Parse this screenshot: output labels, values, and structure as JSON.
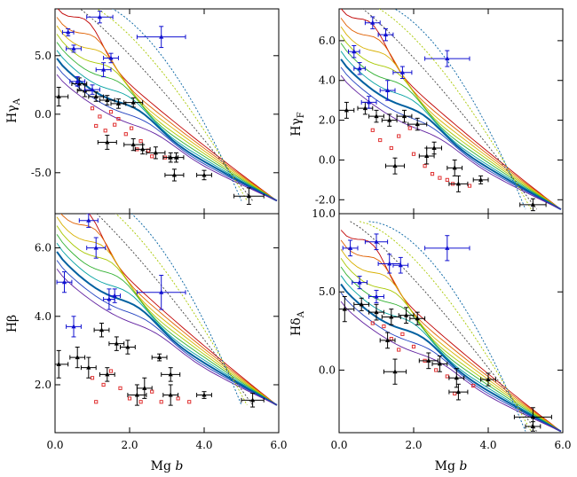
{
  "chart_data": [
    {
      "type": "scatter",
      "panel": "top-left",
      "ylabel_main": "Hγ",
      "ylabel_sub": "A",
      "xlim": [
        0.0,
        6.0
      ],
      "ylim": [
        -8.5,
        9.0
      ],
      "xticks": [
        0.0,
        2.0,
        4.0,
        6.0
      ],
      "yticks": [
        5.0,
        0.0,
        -5.0
      ],
      "ytick_labels": [
        "5.0",
        "0.0",
        "-5.0"
      ],
      "blue_points": [
        {
          "x": 0.35,
          "y": 7.0,
          "xe": 0.15,
          "ye": 0.3
        },
        {
          "x": 1.2,
          "y": 8.3,
          "xe": 0.35,
          "ye": 0.5
        },
        {
          "x": 0.5,
          "y": 5.6,
          "xe": 0.2,
          "ye": 0.3
        },
        {
          "x": 1.5,
          "y": 4.8,
          "xe": 0.2,
          "ye": 0.4
        },
        {
          "x": 1.3,
          "y": 3.8,
          "xe": 0.2,
          "ye": 0.6
        },
        {
          "x": 2.85,
          "y": 6.6,
          "xe": 0.65,
          "ye": 0.9
        },
        {
          "x": 0.6,
          "y": 2.8,
          "xe": 0.2,
          "ye": 0.4
        },
        {
          "x": 1.0,
          "y": 2.1,
          "xe": 0.2,
          "ye": 0.4
        }
      ],
      "black_points": [
        {
          "x": 0.1,
          "y": 1.5,
          "xe": 0.25,
          "ye": 0.8
        },
        {
          "x": 0.65,
          "y": 2.6,
          "xe": 0.2,
          "ye": 0.5
        },
        {
          "x": 0.8,
          "y": 2.0,
          "xe": 0.2,
          "ye": 0.5
        },
        {
          "x": 1.1,
          "y": 1.5,
          "xe": 0.2,
          "ye": 0.4
        },
        {
          "x": 1.4,
          "y": 1.2,
          "xe": 0.2,
          "ye": 0.4
        },
        {
          "x": 1.7,
          "y": 0.9,
          "xe": 0.2,
          "ye": 0.4
        },
        {
          "x": 2.1,
          "y": 1.0,
          "xe": 0.25,
          "ye": 0.4
        },
        {
          "x": 1.4,
          "y": -2.4,
          "xe": 0.25,
          "ye": 0.6
        },
        {
          "x": 2.1,
          "y": -2.6,
          "xe": 0.25,
          "ye": 0.5
        },
        {
          "x": 2.35,
          "y": -3.0,
          "xe": 0.2,
          "ye": 0.4
        },
        {
          "x": 2.7,
          "y": -3.3,
          "xe": 0.25,
          "ye": 0.5
        },
        {
          "x": 3.1,
          "y": -3.7,
          "xe": 0.2,
          "ye": 0.4
        },
        {
          "x": 3.25,
          "y": -3.7,
          "xe": 0.2,
          "ye": 0.4
        },
        {
          "x": 3.2,
          "y": -5.2,
          "xe": 0.25,
          "ye": 0.5
        },
        {
          "x": 4.0,
          "y": -5.2,
          "xe": 0.2,
          "ye": 0.4
        },
        {
          "x": 5.2,
          "y": -7.0,
          "xe": 0.4,
          "ye": 0.7
        }
      ],
      "red_points": [
        {
          "x": 1.0,
          "y": 0.5
        },
        {
          "x": 1.2,
          "y": -0.2
        },
        {
          "x": 1.5,
          "y": 0.2
        },
        {
          "x": 1.1,
          "y": -1.0
        },
        {
          "x": 1.7,
          "y": -0.4
        },
        {
          "x": 1.35,
          "y": -1.4
        },
        {
          "x": 1.9,
          "y": -1.7
        },
        {
          "x": 2.3,
          "y": -2.3
        },
        {
          "x": 2.5,
          "y": -3.1
        },
        {
          "x": 2.6,
          "y": -3.6
        },
        {
          "x": 2.95,
          "y": -3.7
        },
        {
          "x": 2.2,
          "y": -3.0
        },
        {
          "x": 1.6,
          "y": -0.9
        },
        {
          "x": 2.05,
          "y": -1.2
        }
      ]
    },
    {
      "type": "scatter",
      "panel": "top-right",
      "ylabel_main": "Hγ",
      "ylabel_sub": "F",
      "xlim": [
        0.0,
        6.0
      ],
      "ylim": [
        -2.7,
        7.6
      ],
      "xticks": [
        0.0,
        2.0,
        4.0,
        6.0
      ],
      "yticks": [
        6.0,
        4.0,
        2.0,
        0.0,
        -2.0
      ],
      "ytick_labels": [
        "6.0",
        "4.0",
        "2.0",
        "0.0",
        "-2.0"
      ],
      "blue_points": [
        {
          "x": 0.9,
          "y": 6.9,
          "xe": 0.2,
          "ye": 0.3
        },
        {
          "x": 1.25,
          "y": 6.3,
          "xe": 0.2,
          "ye": 0.3
        },
        {
          "x": 0.4,
          "y": 5.45,
          "xe": 0.15,
          "ye": 0.3
        },
        {
          "x": 0.55,
          "y": 4.6,
          "xe": 0.15,
          "ye": 0.3
        },
        {
          "x": 1.7,
          "y": 4.4,
          "xe": 0.25,
          "ye": 0.3
        },
        {
          "x": 1.3,
          "y": 3.5,
          "xe": 0.2,
          "ye": 0.5
        },
        {
          "x": 2.9,
          "y": 5.1,
          "xe": 0.6,
          "ye": 0.4
        },
        {
          "x": 0.8,
          "y": 2.9,
          "xe": 0.2,
          "ye": 0.3
        }
      ],
      "black_points": [
        {
          "x": 0.2,
          "y": 2.5,
          "xe": 0.2,
          "ye": 0.4
        },
        {
          "x": 0.7,
          "y": 2.6,
          "xe": 0.2,
          "ye": 0.3
        },
        {
          "x": 1.0,
          "y": 2.2,
          "xe": 0.2,
          "ye": 0.3
        },
        {
          "x": 1.35,
          "y": 2.0,
          "xe": 0.2,
          "ye": 0.3
        },
        {
          "x": 1.75,
          "y": 2.2,
          "xe": 0.2,
          "ye": 0.3
        },
        {
          "x": 2.1,
          "y": 1.8,
          "xe": 0.25,
          "ye": 0.3
        },
        {
          "x": 1.5,
          "y": -0.3,
          "xe": 0.25,
          "ye": 0.4
        },
        {
          "x": 2.35,
          "y": 0.2,
          "xe": 0.2,
          "ye": 0.4
        },
        {
          "x": 2.55,
          "y": 0.6,
          "xe": 0.2,
          "ye": 0.3
        },
        {
          "x": 3.1,
          "y": -0.4,
          "xe": 0.2,
          "ye": 0.4
        },
        {
          "x": 3.2,
          "y": -1.2,
          "xe": 0.25,
          "ye": 0.4
        },
        {
          "x": 3.8,
          "y": -1.0,
          "xe": 0.2,
          "ye": 0.2
        },
        {
          "x": 5.2,
          "y": -2.25,
          "xe": 0.35,
          "ye": 0.3
        }
      ],
      "red_points": [
        {
          "x": 0.9,
          "y": 1.5
        },
        {
          "x": 1.1,
          "y": 1.0
        },
        {
          "x": 1.4,
          "y": 0.6
        },
        {
          "x": 1.6,
          "y": 1.2
        },
        {
          "x": 2.0,
          "y": 0.3
        },
        {
          "x": 2.3,
          "y": -0.3
        },
        {
          "x": 2.5,
          "y": -0.7
        },
        {
          "x": 2.7,
          "y": -0.9
        },
        {
          "x": 2.9,
          "y": -1.0
        },
        {
          "x": 3.05,
          "y": -1.2
        },
        {
          "x": 3.5,
          "y": -1.3
        },
        {
          "x": 1.9,
          "y": 1.6
        }
      ]
    },
    {
      "type": "scatter",
      "panel": "bottom-left",
      "ylabel_main": "Hβ",
      "ylabel_sub": "",
      "xlim": [
        0.0,
        6.0
      ],
      "ylim": [
        0.6,
        7.0
      ],
      "xticks": [
        0.0,
        2.0,
        4.0,
        6.0
      ],
      "xtick_labels": [
        "0.0",
        "2.0",
        "4.0",
        "6.0"
      ],
      "yticks": [
        6.0,
        4.0,
        2.0
      ],
      "ytick_labels": [
        "6.0",
        "4.0",
        "2.0"
      ],
      "xlabel_main": "Mg",
      "xlabel_it": "b",
      "blue_points": [
        {
          "x": 0.9,
          "y": 6.8,
          "xe": 0.25,
          "ye": 0.2
        },
        {
          "x": 1.1,
          "y": 6.0,
          "xe": 0.25,
          "ye": 0.3
        },
        {
          "x": 0.25,
          "y": 5.0,
          "xe": 0.2,
          "ye": 0.3
        },
        {
          "x": 1.45,
          "y": 4.5,
          "xe": 0.15,
          "ye": 0.3
        },
        {
          "x": 1.6,
          "y": 4.6,
          "xe": 0.15,
          "ye": 0.2
        },
        {
          "x": 2.85,
          "y": 4.7,
          "xe": 0.65,
          "ye": 0.5
        },
        {
          "x": 0.5,
          "y": 3.7,
          "xe": 0.2,
          "ye": 0.3
        }
      ],
      "black_points": [
        {
          "x": 0.1,
          "y": 2.6,
          "xe": 0.25,
          "ye": 0.4
        },
        {
          "x": 0.6,
          "y": 2.8,
          "xe": 0.2,
          "ye": 0.3
        },
        {
          "x": 0.9,
          "y": 2.5,
          "xe": 0.2,
          "ye": 0.3
        },
        {
          "x": 1.25,
          "y": 3.6,
          "xe": 0.2,
          "ye": 0.2
        },
        {
          "x": 1.65,
          "y": 3.2,
          "xe": 0.2,
          "ye": 0.2
        },
        {
          "x": 1.95,
          "y": 3.1,
          "xe": 0.2,
          "ye": 0.2
        },
        {
          "x": 1.4,
          "y": 2.3,
          "xe": 0.2,
          "ye": 0.2
        },
        {
          "x": 2.2,
          "y": 1.7,
          "xe": 0.25,
          "ye": 0.3
        },
        {
          "x": 2.4,
          "y": 1.9,
          "xe": 0.2,
          "ye": 0.3
        },
        {
          "x": 2.8,
          "y": 2.8,
          "xe": 0.2,
          "ye": 0.1
        },
        {
          "x": 3.1,
          "y": 2.3,
          "xe": 0.25,
          "ye": 0.2
        },
        {
          "x": 3.1,
          "y": 1.7,
          "xe": 0.2,
          "ye": 0.3
        },
        {
          "x": 4.0,
          "y": 1.7,
          "xe": 0.2,
          "ye": 0.1
        },
        {
          "x": 5.3,
          "y": 1.55,
          "xe": 0.3,
          "ye": 0.2
        }
      ],
      "red_points": [
        {
          "x": 1.0,
          "y": 2.2
        },
        {
          "x": 1.3,
          "y": 2.0
        },
        {
          "x": 1.5,
          "y": 2.4
        },
        {
          "x": 1.75,
          "y": 1.9
        },
        {
          "x": 2.0,
          "y": 1.6
        },
        {
          "x": 2.3,
          "y": 1.5
        },
        {
          "x": 2.6,
          "y": 1.8
        },
        {
          "x": 2.85,
          "y": 1.5
        },
        {
          "x": 3.3,
          "y": 1.6
        },
        {
          "x": 1.1,
          "y": 1.5
        },
        {
          "x": 3.6,
          "y": 1.5
        }
      ]
    },
    {
      "type": "scatter",
      "panel": "bottom-right",
      "ylabel_main": "Hδ",
      "ylabel_sub": "A",
      "xlim": [
        0.0,
        6.0
      ],
      "ylim": [
        -4.0,
        10.0
      ],
      "xticks": [
        0.0,
        2.0,
        4.0,
        6.0
      ],
      "xtick_labels": [
        "0.0",
        "2.0",
        "4.0",
        "6.0"
      ],
      "yticks": [
        10.0,
        5.0,
        0.0
      ],
      "ytick_labels": [
        "10.0",
        "5.0",
        "0.0"
      ],
      "xlabel_main": "Mg",
      "xlabel_it": "b",
      "blue_points": [
        {
          "x": 0.3,
          "y": 7.8,
          "xe": 0.2,
          "ye": 0.5
        },
        {
          "x": 1.0,
          "y": 8.2,
          "xe": 0.3,
          "ye": 0.5
        },
        {
          "x": 1.35,
          "y": 6.8,
          "xe": 0.3,
          "ye": 0.6
        },
        {
          "x": 1.65,
          "y": 6.7,
          "xe": 0.2,
          "ye": 0.5
        },
        {
          "x": 2.9,
          "y": 7.8,
          "xe": 0.6,
          "ye": 0.8
        },
        {
          "x": 0.55,
          "y": 5.6,
          "xe": 0.2,
          "ye": 0.4
        },
        {
          "x": 1.0,
          "y": 4.7,
          "xe": 0.2,
          "ye": 0.4
        }
      ],
      "black_points": [
        {
          "x": 0.15,
          "y": 3.9,
          "xe": 0.25,
          "ye": 0.8
        },
        {
          "x": 0.6,
          "y": 4.2,
          "xe": 0.2,
          "ye": 0.4
        },
        {
          "x": 1.0,
          "y": 3.7,
          "xe": 0.2,
          "ye": 0.5
        },
        {
          "x": 1.4,
          "y": 3.4,
          "xe": 0.25,
          "ye": 0.5
        },
        {
          "x": 1.8,
          "y": 3.5,
          "xe": 0.2,
          "ye": 0.5
        },
        {
          "x": 2.1,
          "y": 3.3,
          "xe": 0.2,
          "ye": 0.4
        },
        {
          "x": 1.3,
          "y": 1.9,
          "xe": 0.2,
          "ye": 0.5
        },
        {
          "x": 1.5,
          "y": -0.1,
          "xe": 0.3,
          "ye": 0.8
        },
        {
          "x": 2.4,
          "y": 0.6,
          "xe": 0.25,
          "ye": 0.5
        },
        {
          "x": 2.7,
          "y": 0.4,
          "xe": 0.2,
          "ye": 0.5
        },
        {
          "x": 3.15,
          "y": -0.5,
          "xe": 0.2,
          "ye": 0.6
        },
        {
          "x": 3.2,
          "y": -1.4,
          "xe": 0.25,
          "ye": 0.5
        },
        {
          "x": 4.0,
          "y": -0.6,
          "xe": 0.2,
          "ye": 0.4
        },
        {
          "x": 5.2,
          "y": -3.0,
          "xe": 0.5,
          "ye": 0.6
        },
        {
          "x": 5.2,
          "y": -3.6,
          "xe": 0.2,
          "ye": 0.3
        }
      ],
      "red_points": [
        {
          "x": 0.9,
          "y": 3.0
        },
        {
          "x": 1.2,
          "y": 2.8
        },
        {
          "x": 1.4,
          "y": 2.0
        },
        {
          "x": 1.7,
          "y": 2.3
        },
        {
          "x": 2.0,
          "y": 1.5
        },
        {
          "x": 2.3,
          "y": 0.6
        },
        {
          "x": 2.6,
          "y": 0.0
        },
        {
          "x": 2.9,
          "y": -0.4
        },
        {
          "x": 3.1,
          "y": -1.5
        },
        {
          "x": 3.6,
          "y": -1.0
        },
        {
          "x": 1.6,
          "y": 1.3
        }
      ]
    }
  ],
  "colors": {
    "blue_points": "#1010d0",
    "black_points": "#000000",
    "red_points": "#e03030",
    "model_palette": [
      "#c00000",
      "#e06000",
      "#d8b000",
      "#a8c800",
      "#30b030",
      "#00a0a0",
      "#0060a0",
      "#2040c0",
      "#6020a0"
    ]
  }
}
